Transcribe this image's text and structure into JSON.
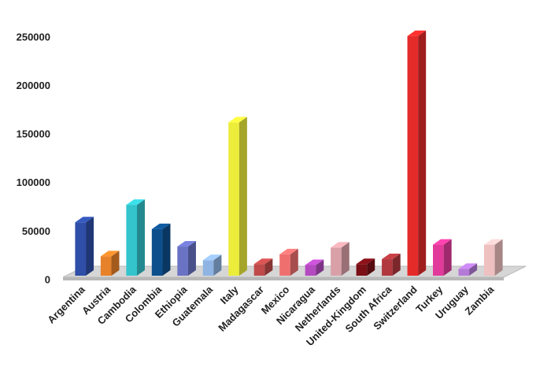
{
  "chart_data": {
    "type": "bar3d",
    "categories": [
      "Argentina",
      "Austria",
      "Cambodia",
      "Colombia",
      "Ethiopia",
      "Guatemala",
      "Italy",
      "Madagascar",
      "Mexico",
      "Nicaragua",
      "Netherlands",
      "United-Kingdom",
      "South Africa",
      "Switzerland",
      "Turkey",
      "Uruguay",
      "Zambia"
    ],
    "values": [
      55000,
      20000,
      73000,
      48000,
      30000,
      16000,
      158000,
      12000,
      22000,
      11000,
      29000,
      12000,
      17000,
      247000,
      32000,
      7000,
      32000
    ],
    "colors": [
      "#2e4ea8",
      "#e8822a",
      "#33c4cc",
      "#0d4f8c",
      "#6a72c4",
      "#8fb4e3",
      "#ecec3a",
      "#c04a4a",
      "#ef6f6f",
      "#b44ac0",
      "#d9a0a8",
      "#7a0f16",
      "#b0383e",
      "#e52a2a",
      "#e23a9a",
      "#b47ad8",
      "#eec0c0"
    ],
    "ylim": [
      0,
      250000
    ],
    "yticks": [
      0,
      50000,
      100000,
      150000,
      200000,
      250000
    ]
  }
}
